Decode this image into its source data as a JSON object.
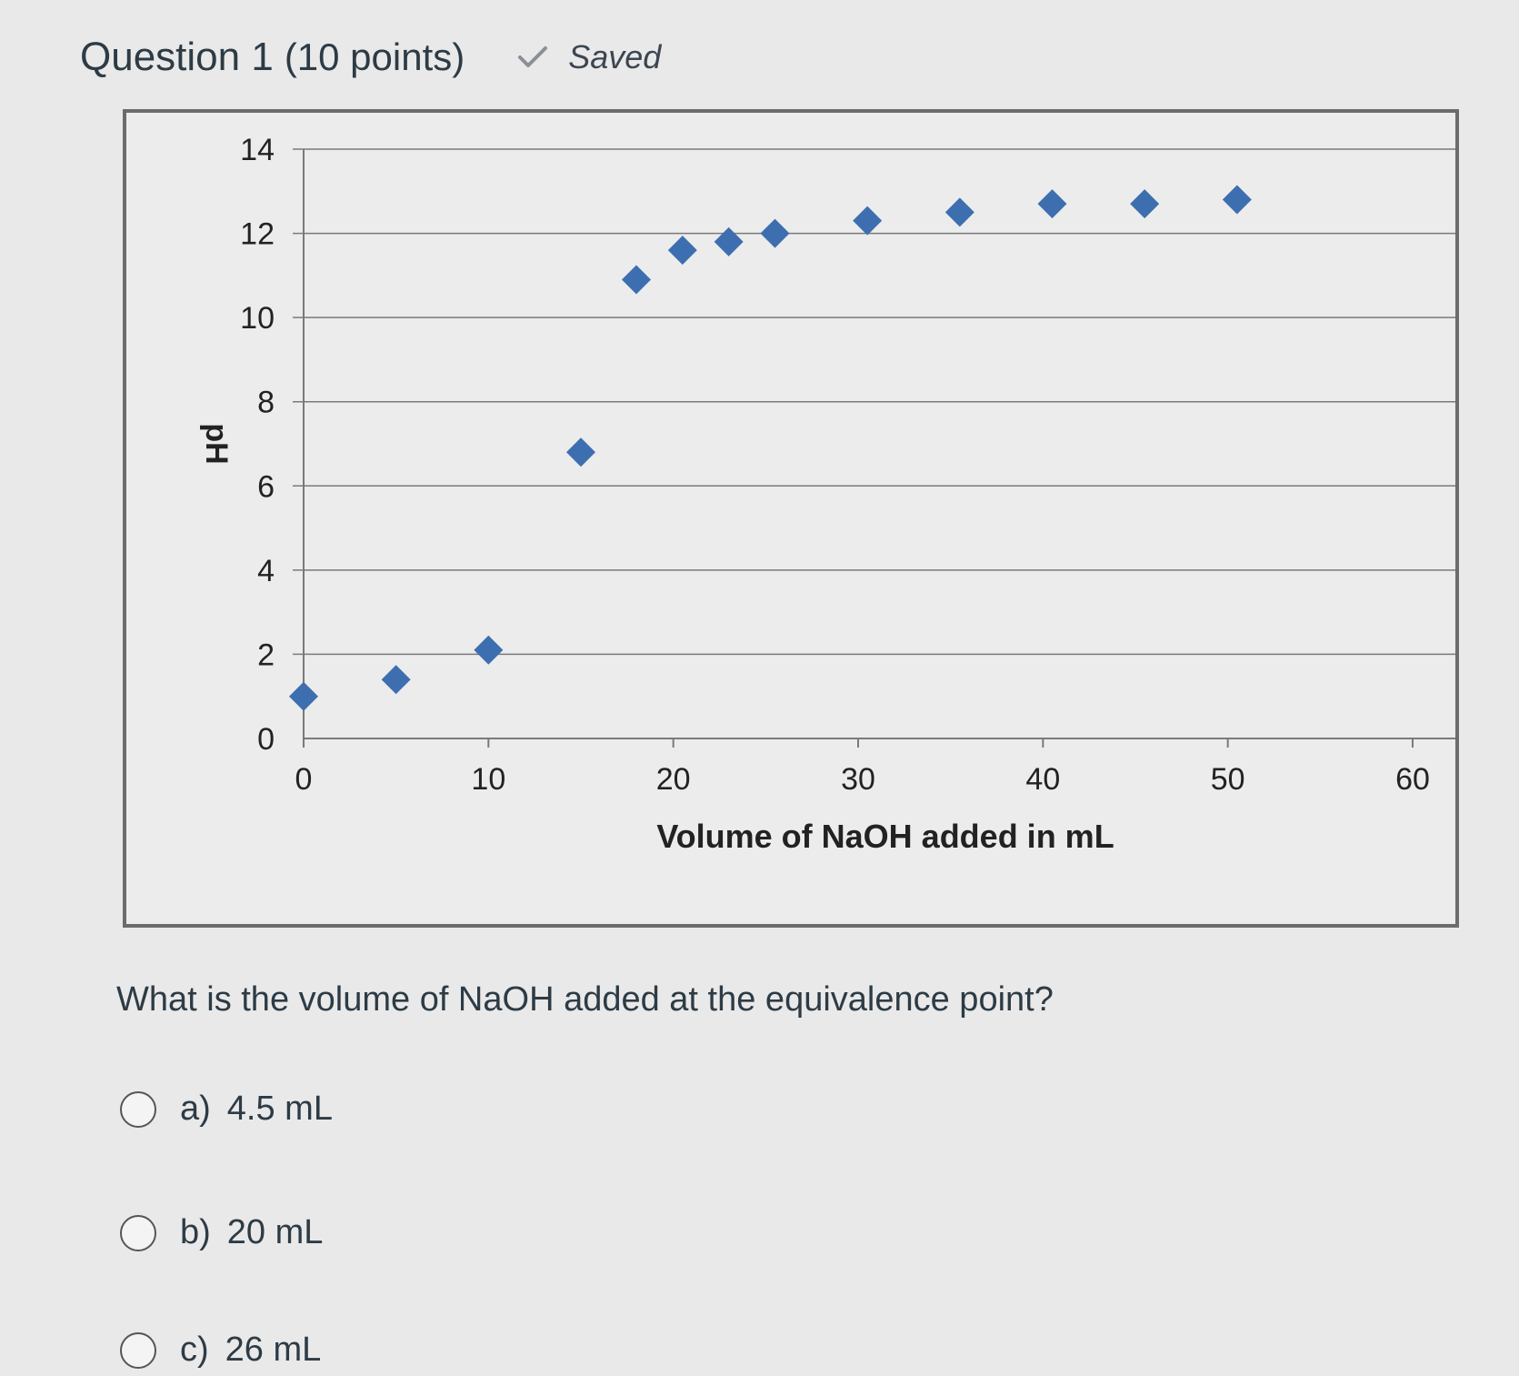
{
  "question": {
    "title": "Question 1",
    "points": "(10 points)",
    "status": "Saved",
    "status_icon": "check-icon",
    "prompt": "What is the volume of NaOH added at the equivalence point?"
  },
  "options": [
    {
      "letter": "a)",
      "text": "4.5 mL"
    },
    {
      "letter": "b)",
      "text": "20 mL"
    },
    {
      "letter": "c)",
      "text": "26 mL"
    }
  ],
  "chart_data": {
    "type": "scatter",
    "title": "",
    "xlabel": "Volume of NaOH added in mL",
    "ylabel": "pH",
    "xlim": [
      0,
      60
    ],
    "ylim": [
      0,
      14
    ],
    "xticks": [
      0,
      10,
      20,
      30,
      40,
      50,
      60
    ],
    "yticks": [
      0,
      2,
      4,
      6,
      8,
      10,
      12,
      14
    ],
    "grid": "horizontal",
    "marker": "diamond",
    "marker_color": "#3d6fb0",
    "points": [
      {
        "x": 0,
        "y": 1.0
      },
      {
        "x": 5,
        "y": 1.4
      },
      {
        "x": 10,
        "y": 2.1
      },
      {
        "x": 15,
        "y": 6.8
      },
      {
        "x": 18,
        "y": 10.9
      },
      {
        "x": 20.5,
        "y": 11.6
      },
      {
        "x": 23,
        "y": 11.8
      },
      {
        "x": 25.5,
        "y": 12.0
      },
      {
        "x": 30.5,
        "y": 12.3
      },
      {
        "x": 35.5,
        "y": 12.5
      },
      {
        "x": 40.5,
        "y": 12.7
      },
      {
        "x": 45.5,
        "y": 12.7
      },
      {
        "x": 50.5,
        "y": 12.8
      }
    ]
  }
}
